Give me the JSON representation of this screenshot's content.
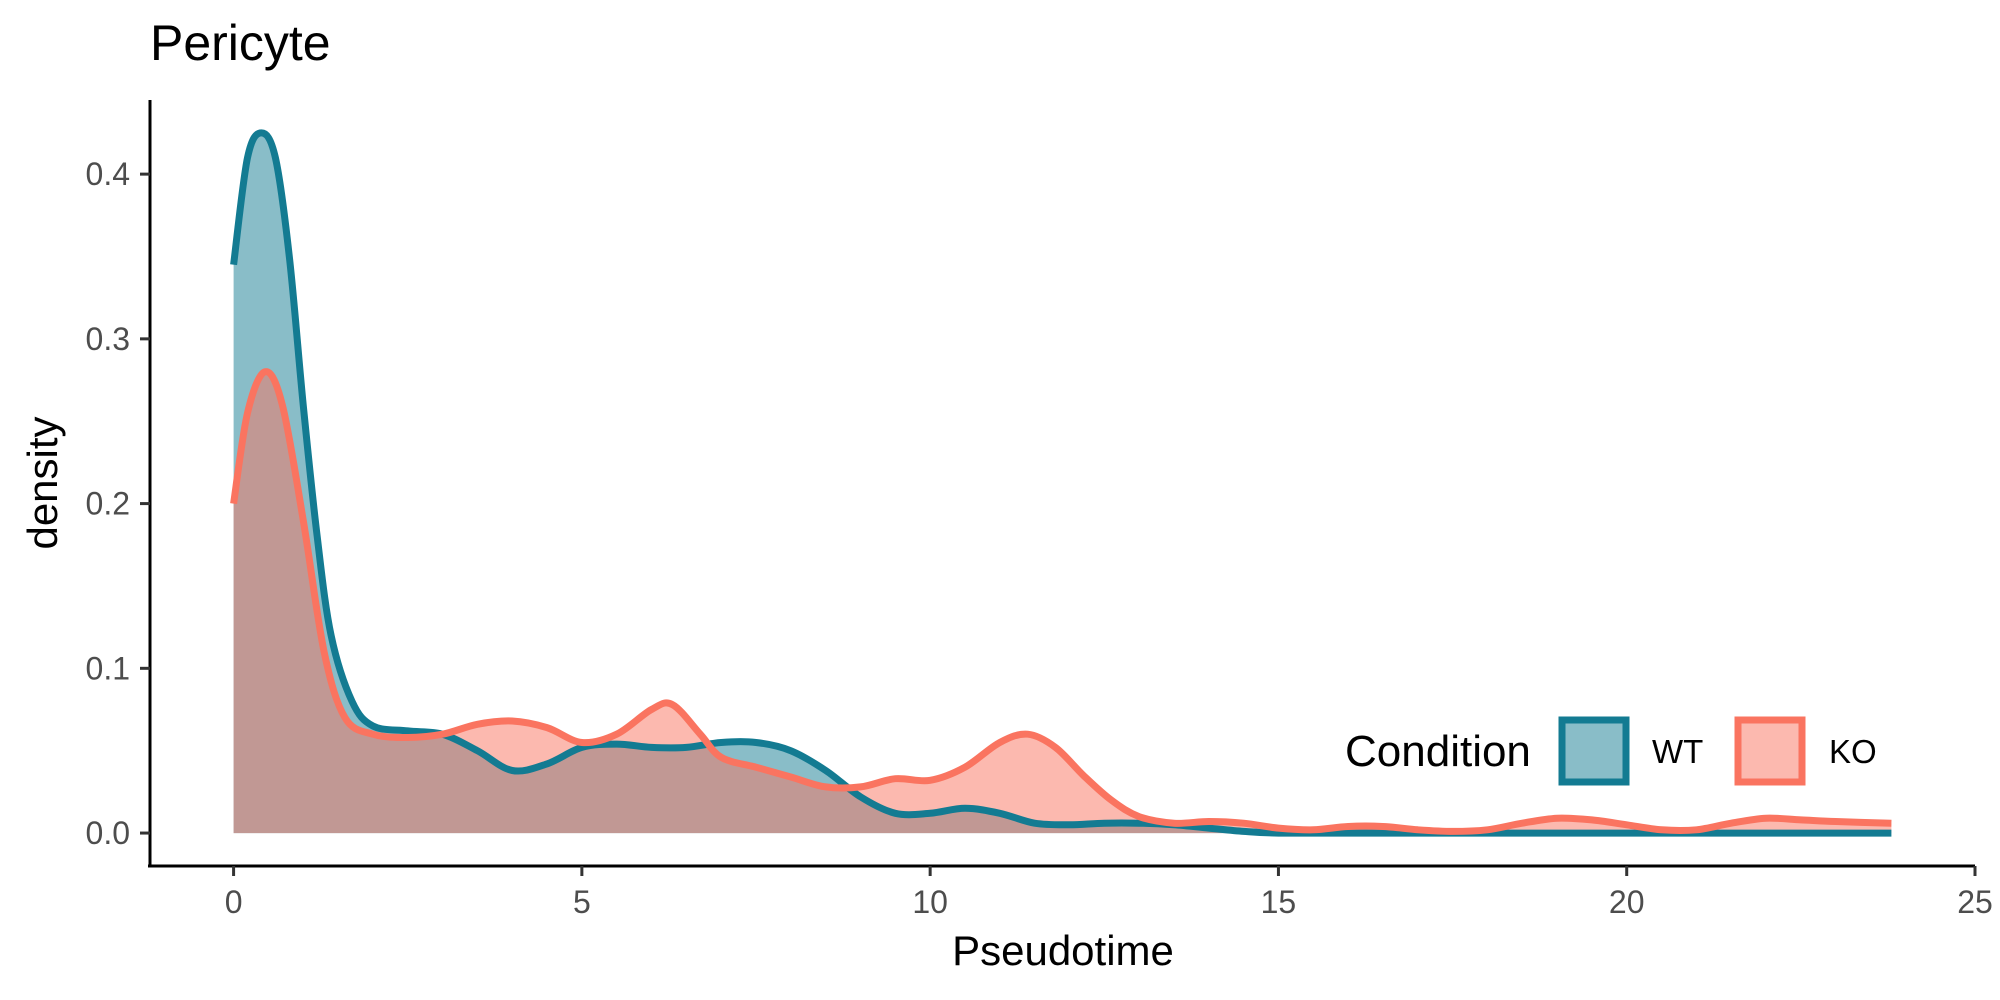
{
  "chart_data": {
    "type": "area",
    "title": "Pericyte",
    "xlabel": "Pseudotime",
    "ylabel": "density",
    "xlim": [
      -1.2,
      25
    ],
    "ylim": [
      -0.02,
      0.445
    ],
    "x_ticks": [
      0,
      5,
      10,
      15,
      20,
      25
    ],
    "x_tick_labels": [
      "0",
      "5",
      "10",
      "15",
      "20",
      "25"
    ],
    "y_ticks": [
      0.0,
      0.1,
      0.2,
      0.3,
      0.4
    ],
    "y_tick_labels": [
      "0.0",
      "0.1",
      "0.2",
      "0.3",
      "0.4"
    ],
    "grid": false,
    "legend": {
      "title": "Condition",
      "position": "bottom-right",
      "orientation": "horizontal"
    },
    "series": [
      {
        "name": "WT",
        "line_color": "#137b92",
        "fill_color": "#137b92",
        "fill_opacity": 0.5,
        "points": [
          [
            0,
            0.345
          ],
          [
            0.2,
            0.41
          ],
          [
            0.4,
            0.425
          ],
          [
            0.6,
            0.41
          ],
          [
            0.8,
            0.35
          ],
          [
            1.0,
            0.26
          ],
          [
            1.2,
            0.18
          ],
          [
            1.4,
            0.12
          ],
          [
            1.7,
            0.08
          ],
          [
            2.0,
            0.065
          ],
          [
            2.5,
            0.062
          ],
          [
            3.0,
            0.06
          ],
          [
            3.5,
            0.05
          ],
          [
            4.0,
            0.038
          ],
          [
            4.5,
            0.042
          ],
          [
            5.0,
            0.052
          ],
          [
            5.5,
            0.054
          ],
          [
            6.0,
            0.052
          ],
          [
            6.5,
            0.052
          ],
          [
            7.0,
            0.055
          ],
          [
            7.5,
            0.055
          ],
          [
            8.0,
            0.05
          ],
          [
            8.5,
            0.038
          ],
          [
            9.0,
            0.022
          ],
          [
            9.5,
            0.012
          ],
          [
            10.0,
            0.012
          ],
          [
            10.5,
            0.015
          ],
          [
            11.0,
            0.012
          ],
          [
            11.5,
            0.006
          ],
          [
            12.0,
            0.005
          ],
          [
            12.5,
            0.006
          ],
          [
            13.0,
            0.006
          ],
          [
            13.5,
            0.005
          ],
          [
            14.0,
            0.003
          ],
          [
            14.5,
            0.001
          ],
          [
            15.0,
            0.0
          ],
          [
            16,
            0.0
          ],
          [
            17,
            0.0
          ],
          [
            18,
            0.0
          ],
          [
            19,
            0.0
          ],
          [
            20,
            0.0
          ],
          [
            21,
            0.0
          ],
          [
            22,
            0.0
          ],
          [
            23,
            0.0
          ],
          [
            23.8,
            0.0
          ]
        ]
      },
      {
        "name": "KO",
        "line_color": "#fa7460",
        "fill_color": "#fa7460",
        "fill_opacity": 0.5,
        "points": [
          [
            0,
            0.2
          ],
          [
            0.2,
            0.255
          ],
          [
            0.45,
            0.28
          ],
          [
            0.7,
            0.26
          ],
          [
            1.0,
            0.19
          ],
          [
            1.3,
            0.11
          ],
          [
            1.6,
            0.07
          ],
          [
            2.0,
            0.06
          ],
          [
            2.5,
            0.058
          ],
          [
            3.0,
            0.06
          ],
          [
            3.5,
            0.066
          ],
          [
            4.0,
            0.068
          ],
          [
            4.5,
            0.064
          ],
          [
            5.0,
            0.055
          ],
          [
            5.5,
            0.06
          ],
          [
            6.0,
            0.075
          ],
          [
            6.3,
            0.078
          ],
          [
            6.7,
            0.06
          ],
          [
            7.0,
            0.046
          ],
          [
            7.5,
            0.04
          ],
          [
            8.0,
            0.034
          ],
          [
            8.5,
            0.028
          ],
          [
            9.0,
            0.028
          ],
          [
            9.5,
            0.033
          ],
          [
            10.0,
            0.032
          ],
          [
            10.5,
            0.04
          ],
          [
            11.0,
            0.055
          ],
          [
            11.4,
            0.06
          ],
          [
            11.8,
            0.052
          ],
          [
            12.2,
            0.035
          ],
          [
            12.6,
            0.02
          ],
          [
            13.0,
            0.01
          ],
          [
            13.5,
            0.006
          ],
          [
            14.0,
            0.007
          ],
          [
            14.5,
            0.006
          ],
          [
            15.0,
            0.003
          ],
          [
            15.5,
            0.002
          ],
          [
            16.0,
            0.004
          ],
          [
            16.5,
            0.004
          ],
          [
            17.0,
            0.002
          ],
          [
            17.5,
            0.001
          ],
          [
            18.0,
            0.002
          ],
          [
            18.5,
            0.006
          ],
          [
            19.0,
            0.009
          ],
          [
            19.5,
            0.008
          ],
          [
            20.0,
            0.005
          ],
          [
            20.5,
            0.002
          ],
          [
            21.0,
            0.002
          ],
          [
            21.5,
            0.006
          ],
          [
            22.0,
            0.009
          ],
          [
            22.5,
            0.008
          ],
          [
            23.0,
            0.007
          ],
          [
            23.8,
            0.006
          ]
        ]
      }
    ]
  }
}
